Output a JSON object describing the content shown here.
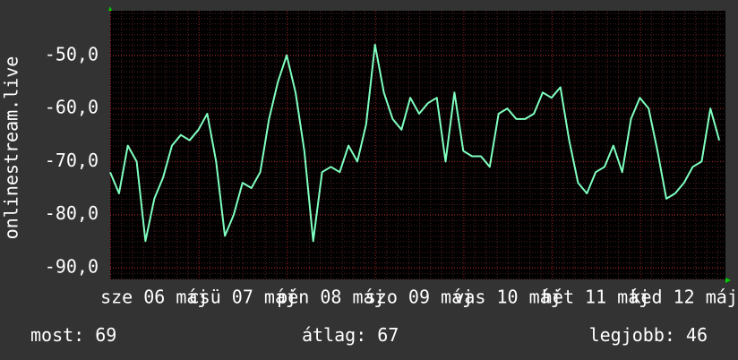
{
  "chart_data": {
    "type": "line",
    "y_label": "onlinestream.live",
    "xlim": [
      0,
      6.97
    ],
    "ylim": [
      -92.2,
      -41.6
    ],
    "yticks": [
      {
        "value": -50,
        "label": "-50,0"
      },
      {
        "value": -60,
        "label": "-60,0"
      },
      {
        "value": -70,
        "label": "-70,0"
      },
      {
        "value": -80,
        "label": "-80,0"
      },
      {
        "value": -90,
        "label": "-90,0"
      }
    ],
    "xticks": [
      {
        "value": 0.5,
        "label": "sze 06 máj"
      },
      {
        "value": 1.5,
        "label": "csü 07 máj"
      },
      {
        "value": 2.5,
        "label": "pén 08 máj"
      },
      {
        "value": 3.5,
        "label": "szo 09 máj"
      },
      {
        "value": 4.5,
        "label": "vas 10 máj"
      },
      {
        "value": 5.5,
        "label": "hét 11 máj"
      },
      {
        "value": 6.5,
        "label": "ked 12 máj"
      }
    ],
    "grid": true,
    "series": [
      {
        "color": "#7fffc0",
        "x": [
          0,
          0.1,
          0.2,
          0.3,
          0.4,
          0.5,
          0.6,
          0.7,
          0.8,
          0.9,
          1,
          1.1,
          1.2,
          1.3,
          1.4,
          1.5,
          1.6,
          1.7,
          1.8,
          1.9,
          2,
          2.1,
          2.2,
          2.3,
          2.4,
          2.5,
          2.6,
          2.7,
          2.8,
          2.9,
          3,
          3.1,
          3.2,
          3.3,
          3.4,
          3.5,
          3.6,
          3.7,
          3.8,
          3.9,
          4,
          4.1,
          4.2,
          4.3,
          4.4,
          4.5,
          4.6,
          4.7,
          4.8,
          4.9,
          5,
          5.1,
          5.2,
          5.3,
          5.4,
          5.5,
          5.6,
          5.7,
          5.8,
          5.9,
          6,
          6.1,
          6.2,
          6.3,
          6.4,
          6.5,
          6.6,
          6.7,
          6.8,
          6.9
        ],
        "values": [
          -72,
          -76,
          -67,
          -70,
          -85,
          -77,
          -73,
          -67,
          -65,
          -66,
          -64,
          -61,
          -70,
          -84,
          -80,
          -74,
          -75,
          -72,
          -62,
          -55,
          -50,
          -57,
          -68,
          -85,
          -72,
          -71,
          -72,
          -67,
          -70,
          -63,
          -48,
          -57,
          -62,
          -64,
          -58,
          -61,
          -59,
          -58,
          -70,
          -57,
          -68,
          -69,
          -69,
          -71,
          -61,
          -60,
          -62,
          -62,
          -61,
          -57,
          -58,
          -56,
          -66,
          -74,
          -76,
          -72,
          -71,
          -67,
          -72,
          -62,
          -58,
          -60,
          -68,
          -77,
          -76,
          -74,
          -71,
          -70,
          -60,
          -66
        ]
      }
    ],
    "stats": [
      {
        "label": "most:",
        "value": 69
      },
      {
        "label": "átlag:",
        "value": 67
      },
      {
        "label": "legjobb:",
        "value": 46
      }
    ]
  }
}
